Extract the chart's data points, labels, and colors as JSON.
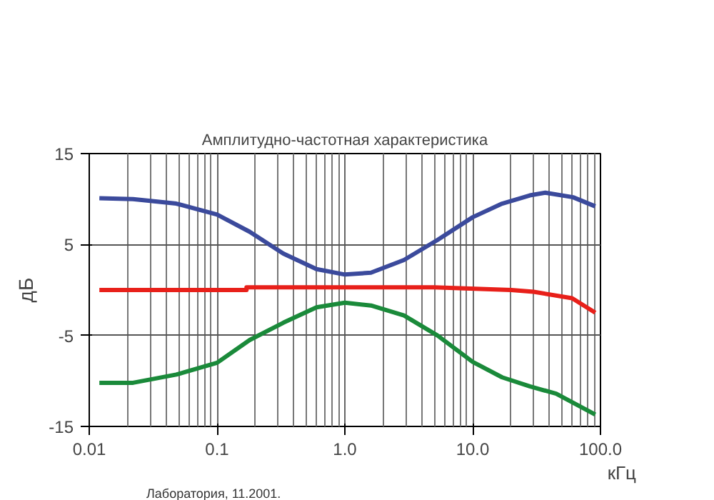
{
  "chart_data": {
    "type": "line",
    "title": "Амплитудно-частотная характеристика",
    "xlabel": "кГц",
    "ylabel": "дБ",
    "log": "x",
    "grid": true,
    "xlim": [
      0.01,
      100
    ],
    "ylim": [
      -15,
      15
    ],
    "xticks": [
      {
        "value": 0.01,
        "label": "0.01"
      },
      {
        "value": 0.1,
        "label": "0.1"
      },
      {
        "value": 1,
        "label": "1.0"
      },
      {
        "value": 10,
        "label": "10.0"
      },
      {
        "value": 100,
        "label": "100.0"
      }
    ],
    "yticks": [
      -15,
      -5,
      5,
      15
    ],
    "annotations": [
      "Лаборатория, 11.2001."
    ],
    "series": [
      {
        "color": "#3b4a9c",
        "x": [
          0.012,
          0.022,
          0.048,
          0.1,
          0.18,
          0.33,
          0.6,
          1.0,
          1.6,
          2.9,
          5.3,
          10,
          17,
          28,
          37,
          61,
          91
        ],
        "values": [
          10.1,
          10.0,
          9.5,
          8.3,
          6.4,
          4.0,
          2.3,
          1.7,
          1.9,
          3.3,
          5.5,
          8.0,
          9.5,
          10.4,
          10.7,
          10.2,
          9.2
        ]
      },
      {
        "color": "#e8201a",
        "x": [
          0.012,
          0.17,
          0.17,
          5,
          20,
          30,
          60,
          91
        ],
        "values": [
          0,
          0,
          0.3,
          0.3,
          0,
          -0.2,
          -0.9,
          -2.5
        ]
      },
      {
        "color": "#1a8a3a",
        "x": [
          0.012,
          0.022,
          0.048,
          0.1,
          0.18,
          0.33,
          0.6,
          1.0,
          1.6,
          2.9,
          5.3,
          10,
          17,
          28,
          45,
          91
        ],
        "values": [
          -10.2,
          -10.2,
          -9.3,
          -8.0,
          -5.5,
          -3.6,
          -1.9,
          -1.4,
          -1.7,
          -2.8,
          -5.0,
          -7.9,
          -9.6,
          -10.6,
          -11.4,
          -13.7
        ]
      }
    ]
  }
}
